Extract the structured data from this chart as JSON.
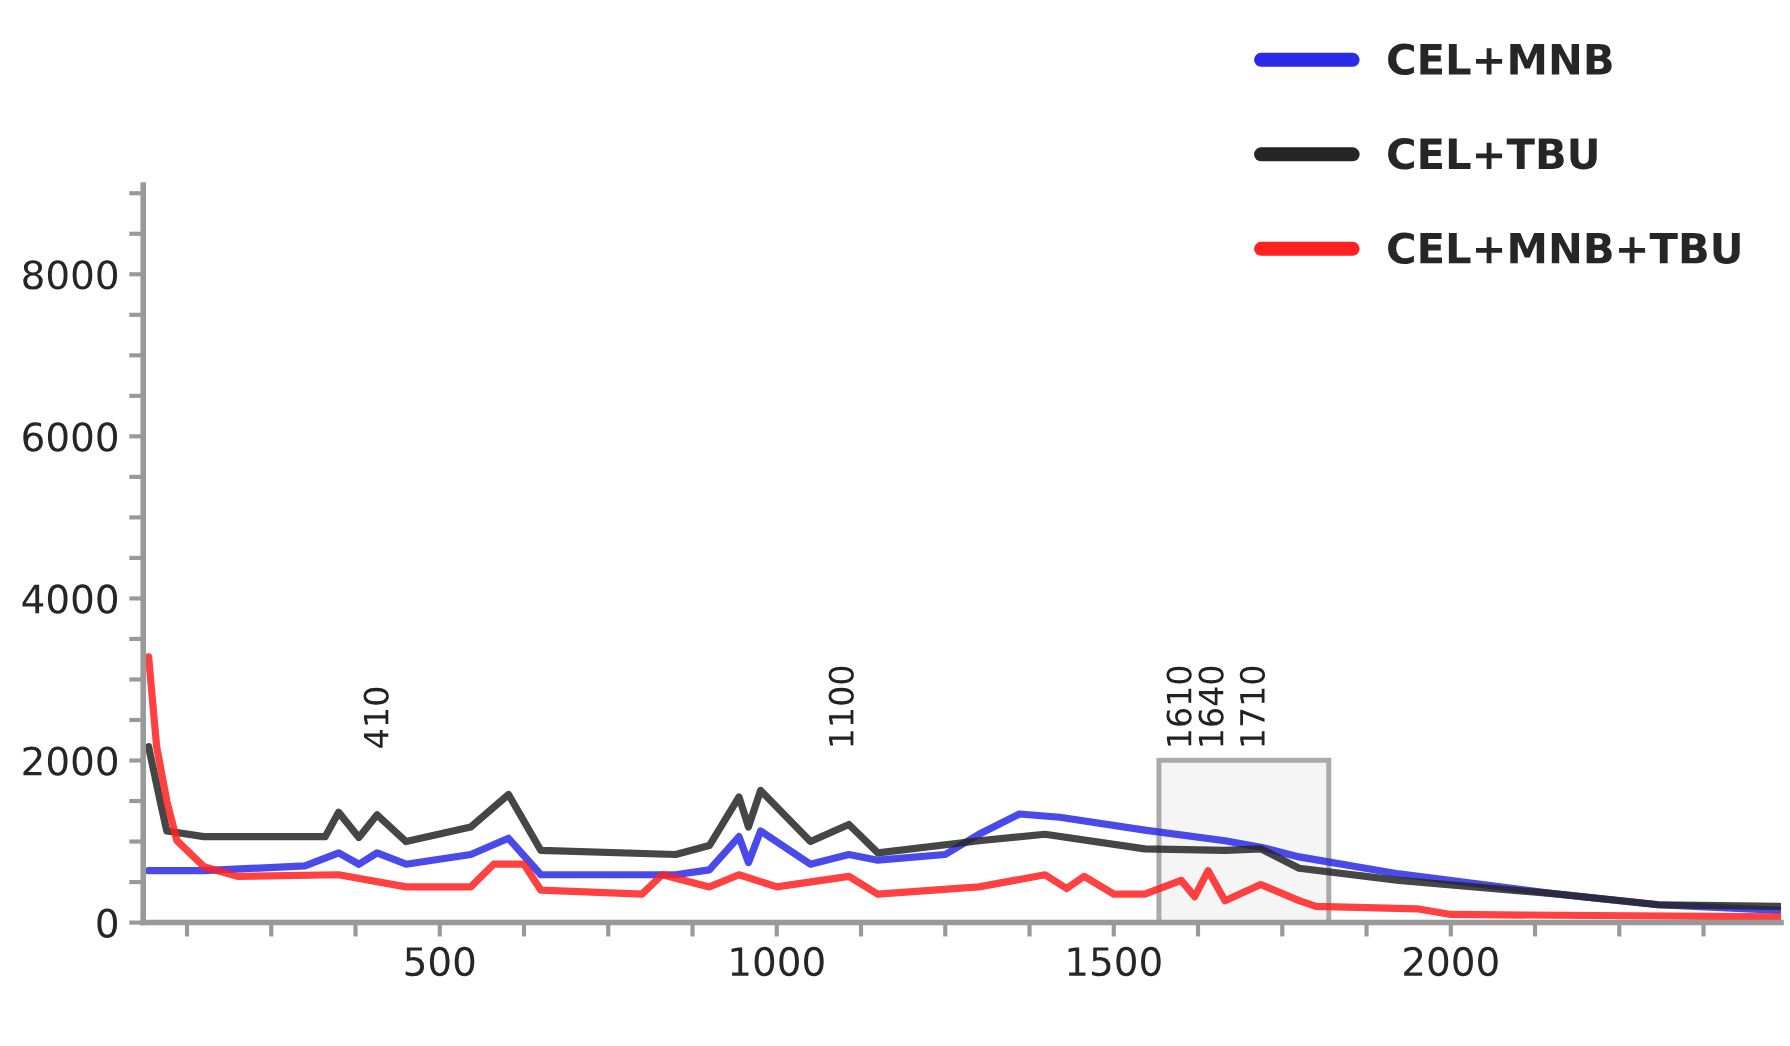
{
  "chart_data": {
    "type": "line",
    "xlim": [
      60,
      2490
    ],
    "ylim": [
      0,
      9100
    ],
    "xticks": [
      {
        "value": 125,
        "label": null
      },
      {
        "value": 250,
        "label": null
      },
      {
        "value": 375,
        "label": null
      },
      500,
      {
        "value": 625,
        "label": null
      },
      {
        "value": 750,
        "label": null
      },
      {
        "value": 875,
        "label": null
      },
      1000,
      {
        "value": 1125,
        "label": null
      },
      {
        "value": 1250,
        "label": null
      },
      {
        "value": 1375,
        "label": null
      },
      1500,
      {
        "value": 1625,
        "label": null
      },
      {
        "value": 1750,
        "label": null
      },
      {
        "value": 1875,
        "label": null
      },
      2000,
      {
        "value": 2125,
        "label": null
      },
      {
        "value": 2250,
        "label": null
      },
      {
        "value": 2375,
        "label": null
      }
    ],
    "yticks": [
      0,
      {
        "value": 500,
        "label": null
      },
      {
        "value": 1000,
        "label": null
      },
      {
        "value": 1500,
        "label": null
      },
      2000,
      {
        "value": 2500,
        "label": null
      },
      {
        "value": 3000,
        "label": null
      },
      {
        "value": 3500,
        "label": null
      },
      4000,
      {
        "value": 4500,
        "label": null
      },
      {
        "value": 5000,
        "label": null
      },
      {
        "value": 5500,
        "label": null
      },
      6000,
      {
        "value": 6500,
        "label": null
      },
      {
        "value": 7000,
        "label": null
      },
      {
        "value": 7500,
        "label": null
      },
      8000,
      {
        "value": 8500,
        "label": null
      },
      {
        "value": 9000,
        "label": null
      }
    ],
    "grid": false,
    "legend": "top right",
    "series": [
      {
        "name": "CEL+MNB",
        "color": "#2a2ae8",
        "x": [
          68,
          150,
          300,
          350,
          380,
          407,
          450,
          546,
          602,
          650,
          850,
          900,
          944,
          958,
          976,
          1050,
          1107,
          1150,
          1250,
          1300,
          1360,
          1420,
          1546,
          1665,
          1718,
          1775,
          1923,
          2160,
          2308,
          2487
        ],
        "values": [
          640,
          640,
          700,
          860,
          720,
          860,
          720,
          840,
          1040,
          590,
          590,
          650,
          1060,
          740,
          1130,
          720,
          840,
          770,
          840,
          1090,
          1340,
          1300,
          1140,
          1010,
          930,
          810,
          600,
          350,
          220,
          150
        ]
      },
      {
        "name": "CEL+TBU",
        "color": "#262626",
        "x": [
          68,
          87,
          95,
          150,
          330,
          350,
          380,
          407,
          450,
          546,
          602,
          650,
          850,
          900,
          944,
          958,
          976,
          1050,
          1107,
          1150,
          1300,
          1398,
          1546,
          1665,
          1718,
          1775,
          1923,
          2160,
          2308,
          2487
        ],
        "values": [
          2170,
          1430,
          1130,
          1060,
          1060,
          1360,
          1050,
          1330,
          1000,
          1180,
          1580,
          890,
          840,
          950,
          1550,
          1180,
          1630,
          1000,
          1210,
          860,
          1010,
          1090,
          910,
          890,
          910,
          670,
          520,
          350,
          220,
          200
        ]
      },
      {
        "name": "CEL+MNB+TBU",
        "color": "#ff2020",
        "x": [
          68,
          80,
          95,
          110,
          150,
          200,
          350,
          450,
          546,
          580,
          625,
          650,
          800,
          830,
          900,
          944,
          1000,
          1107,
          1150,
          1300,
          1398,
          1430,
          1456,
          1500,
          1546,
          1600,
          1620,
          1640,
          1665,
          1718,
          1775,
          1800,
          1950,
          2000,
          2487
        ],
        "values": [
          3280,
          2170,
          1500,
          1010,
          690,
          570,
          590,
          440,
          440,
          720,
          720,
          400,
          350,
          590,
          440,
          590,
          440,
          570,
          350,
          440,
          590,
          420,
          570,
          350,
          350,
          520,
          320,
          640,
          270,
          470,
          270,
          200,
          170,
          100,
          70
        ]
      }
    ],
    "annotations": [
      "410",
      "1100",
      "1610",
      "1640",
      "1710"
    ],
    "bands": [
      {
        "axis": "x",
        "from": 1567,
        "to": 1819,
        "color": "#aaaaaa"
      }
    ]
  }
}
